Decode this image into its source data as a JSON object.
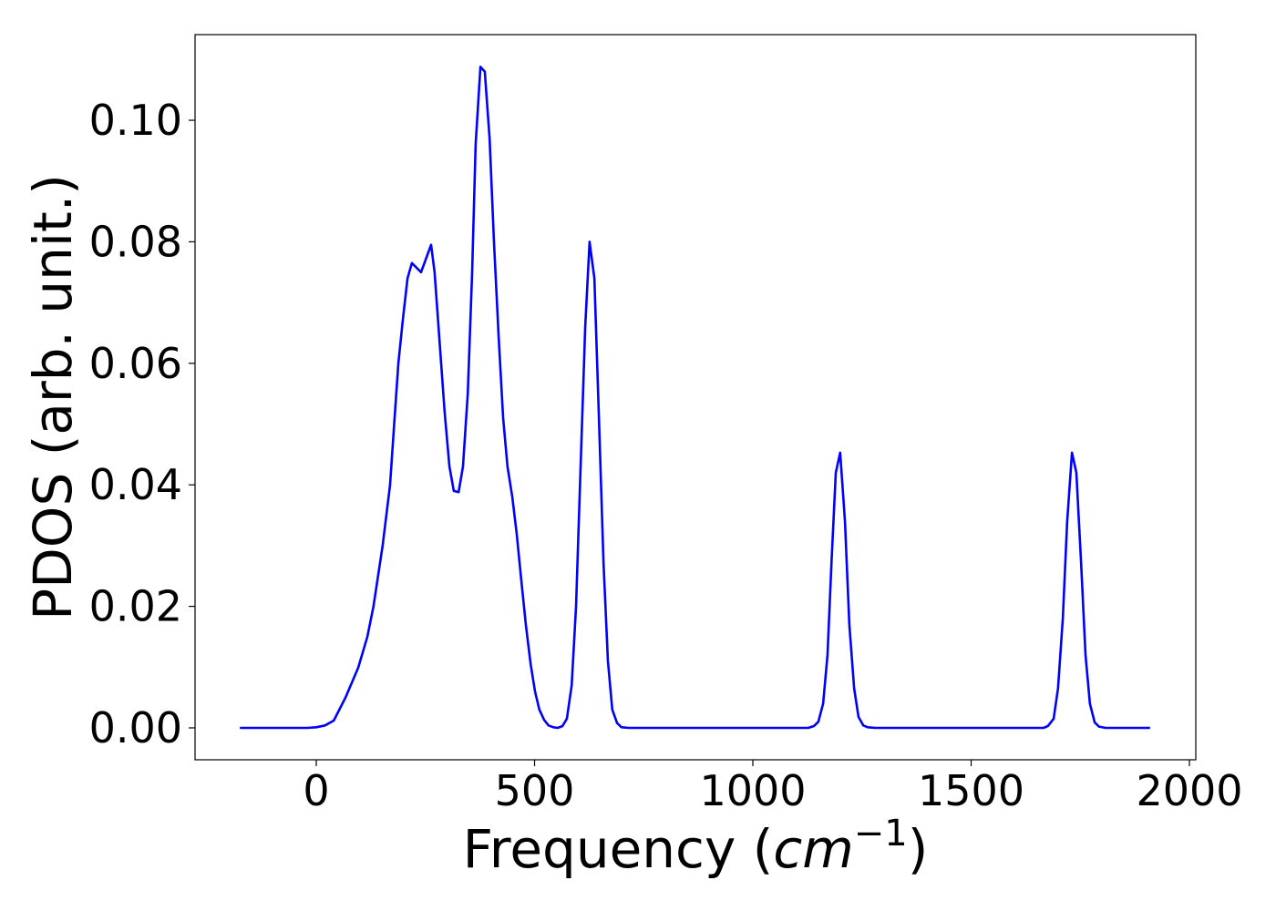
{
  "chart_data": {
    "type": "line",
    "xlabel": [
      "Frequency (",
      "cm",
      "−1",
      ")"
    ],
    "ylabel": "PDOS (arb. unit.)",
    "xlim": [
      -277.7,
      2014.6
    ],
    "ylim": [
      -0.00525,
      0.1141
    ],
    "xticks": [
      0,
      500,
      1000,
      1500,
      2000
    ],
    "yticks": [
      {
        "value": 0,
        "label": "0.00"
      },
      {
        "value": 0.02,
        "label": "0.02"
      },
      {
        "value": 0.04,
        "label": "0.04"
      },
      {
        "value": 0.06,
        "label": "0.06"
      },
      {
        "value": 0.08,
        "label": "0.08"
      },
      {
        "value": 0.1,
        "label": "0.10"
      }
    ],
    "grid": false,
    "x": [
      -175,
      -20,
      0,
      20,
      40,
      67,
      96,
      117,
      131,
      152,
      169,
      177,
      188,
      198,
      209,
      219,
      240,
      263,
      271,
      294,
      305,
      315,
      326,
      336,
      347,
      357,
      365,
      376,
      386,
      397,
      407,
      418,
      428,
      438,
      449,
      459,
      470,
      480,
      491,
      501,
      511,
      522,
      532,
      543,
      553,
      564,
      574,
      585,
      595,
      605,
      616,
      626,
      637,
      647,
      658,
      668,
      678,
      689,
      699,
      716,
      1127,
      1140,
      1150,
      1161,
      1171,
      1180,
      1190,
      1200,
      1211,
      1221,
      1232,
      1242,
      1253,
      1263,
      1280,
      1666,
      1676,
      1689,
      1699,
      1710,
      1720,
      1731,
      1741,
      1752,
      1762,
      1772,
      1783,
      1793,
      1808,
      1910
    ],
    "series": [
      {
        "name": "PDOS",
        "color": "#0000ff",
        "values": [
          0,
          0,
          0.0001,
          0.0004,
          0.0012,
          0.005,
          0.0099,
          0.015,
          0.02,
          0.03,
          0.04,
          0.0485,
          0.06,
          0.067,
          0.074,
          0.0765,
          0.075,
          0.0795,
          0.075,
          0.052,
          0.043,
          0.039,
          0.0388,
          0.043,
          0.055,
          0.075,
          0.096,
          0.1088,
          0.108,
          0.097,
          0.08,
          0.064,
          0.051,
          0.043,
          0.038,
          0.032,
          0.024,
          0.017,
          0.0105,
          0.006,
          0.003,
          0.0013,
          0.0004,
          0.0001,
          0,
          0.0003,
          0.0015,
          0.007,
          0.02,
          0.042,
          0.066,
          0.08,
          0.074,
          0.052,
          0.027,
          0.011,
          0.003,
          0.0008,
          0.0001,
          0,
          0,
          0.0003,
          0.001,
          0.004,
          0.012,
          0.027,
          0.042,
          0.0453,
          0.034,
          0.017,
          0.0065,
          0.0018,
          0.0004,
          0.0001,
          0,
          0,
          0.0003,
          0.0015,
          0.0065,
          0.018,
          0.034,
          0.0453,
          0.042,
          0.027,
          0.012,
          0.004,
          0.0009,
          0.0002,
          0,
          0
        ]
      }
    ]
  }
}
